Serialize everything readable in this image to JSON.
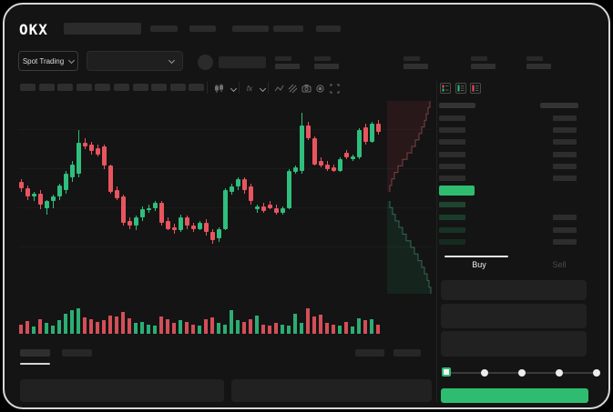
{
  "header": {
    "logo": "OKX",
    "nav_placeholder_count": 5
  },
  "subheader": {
    "market_selector_label": "Spot Trading",
    "pair_select_value": "",
    "stat_group_count": 5
  },
  "toolbar": {
    "timeframe_placeholder_count": 10,
    "icons": [
      {
        "name": "chart-type-icon"
      },
      {
        "name": "chevron-down-icon"
      },
      {
        "name": "indicators-icon",
        "glyph": "fx"
      },
      {
        "name": "chevron-down-icon"
      },
      {
        "name": "line-tool-icon"
      },
      {
        "name": "compare-icon"
      },
      {
        "name": "snapshot-icon"
      },
      {
        "name": "settings-icon"
      },
      {
        "name": "fullscreen-icon"
      }
    ]
  },
  "orderbook": {
    "view_icons": [
      "book-both-sides-icon",
      "book-bids-only-icon",
      "book-asks-only-icon"
    ],
    "ask_row_count": 6,
    "bid_row_count": 4,
    "bid_size_row_count": 3,
    "bid_bar_colors": [
      "#1f4531",
      "#1b3c2b",
      "#183326",
      "#152b20"
    ]
  },
  "trade": {
    "buy_label": "Buy",
    "sell_label": "Sell",
    "input_count": 3,
    "slider_steps": 5,
    "slider_selected_index": 0
  },
  "colors": {
    "candle_green": "#2fbe7d",
    "candle_red": "#e8555f",
    "accent_green": "#2ebd70",
    "last_price_bg": "#2ebd70",
    "placeholder": "#2a2a2a",
    "background": "#141414",
    "frame_border": "#d8d8d8"
  },
  "chart_data": {
    "type": "candlestick",
    "title": "",
    "xlabel": "",
    "ylabel": "",
    "axis_labels_visible": false,
    "grid": "faint horizontal lines",
    "price_scale": [
      0,
      100
    ],
    "ohlc": [
      [
        55,
        57,
        49,
        51
      ],
      [
        51,
        53,
        44,
        46
      ],
      [
        46,
        49,
        43,
        48
      ],
      [
        48,
        50,
        38,
        41
      ],
      [
        39,
        44,
        35,
        43
      ],
      [
        43,
        47,
        39,
        46
      ],
      [
        46,
        54,
        44,
        53
      ],
      [
        50,
        62,
        48,
        60
      ],
      [
        58,
        68,
        55,
        66
      ],
      [
        60,
        87,
        58,
        79
      ],
      [
        79,
        82,
        75,
        77
      ],
      [
        78,
        80,
        72,
        74
      ],
      [
        76,
        78,
        71,
        72
      ],
      [
        77,
        78,
        63,
        65
      ],
      [
        65,
        66,
        48,
        49
      ],
      [
        50,
        52,
        44,
        45
      ],
      [
        46,
        47,
        28,
        30
      ],
      [
        31,
        33,
        26,
        28
      ],
      [
        28,
        34,
        25,
        33
      ],
      [
        33,
        40,
        31,
        38
      ],
      [
        38,
        41,
        36,
        39
      ],
      [
        39,
        43,
        37,
        42
      ],
      [
        42,
        43,
        28,
        30
      ],
      [
        31,
        33,
        25,
        26
      ],
      [
        27,
        29,
        23,
        25
      ],
      [
        25,
        35,
        24,
        33
      ],
      [
        33,
        34,
        26,
        28
      ],
      [
        28,
        30,
        24,
        26
      ],
      [
        26,
        31,
        25,
        30
      ],
      [
        30,
        32,
        22,
        24
      ],
      [
        24,
        26,
        17,
        19
      ],
      [
        20,
        27,
        18,
        26
      ],
      [
        26,
        51,
        25,
        50
      ],
      [
        49,
        54,
        47,
        52
      ],
      [
        52,
        58,
        50,
        57
      ],
      [
        57,
        58,
        48,
        50
      ],
      [
        52,
        54,
        41,
        43
      ],
      [
        38,
        41,
        36,
        40
      ],
      [
        40,
        42,
        36,
        37
      ],
      [
        41,
        43,
        38,
        39
      ],
      [
        39,
        41,
        35,
        36
      ],
      [
        36,
        40,
        35,
        39
      ],
      [
        39,
        63,
        38,
        62
      ],
      [
        61,
        65,
        60,
        64
      ],
      [
        62,
        98,
        60,
        90
      ],
      [
        90,
        92,
        81,
        82
      ],
      [
        82,
        83,
        65,
        66
      ],
      [
        68,
        70,
        64,
        65
      ],
      [
        66,
        68,
        62,
        63
      ],
      [
        64,
        66,
        61,
        62
      ],
      [
        62,
        70,
        61,
        69
      ],
      [
        73,
        75,
        69,
        70
      ],
      [
        69,
        72,
        68,
        71
      ],
      [
        70,
        88,
        69,
        87
      ],
      [
        89,
        91,
        78,
        80
      ],
      [
        80,
        92,
        79,
        91
      ],
      [
        91,
        93,
        84,
        86
      ]
    ],
    "volumes": [
      10,
      14,
      8,
      16,
      12,
      9,
      15,
      22,
      26,
      28,
      18,
      16,
      13,
      15,
      20,
      19,
      24,
      17,
      12,
      13,
      10,
      9,
      19,
      16,
      12,
      15,
      13,
      10,
      9,
      16,
      18,
      12,
      10,
      26,
      15,
      13,
      16,
      20,
      10,
      9,
      12,
      10,
      9,
      22,
      12,
      28,
      19,
      21,
      12,
      10,
      9,
      13,
      8,
      17,
      15,
      16,
      10
    ],
    "depth": {
      "asks": [
        47,
        45,
        43,
        41,
        38,
        35,
        31,
        27,
        22,
        17,
        12,
        8,
        5,
        3
      ],
      "bids": [
        3,
        6,
        9,
        13,
        17,
        21,
        26,
        30,
        34,
        38,
        41,
        44,
        46,
        48
      ]
    }
  }
}
